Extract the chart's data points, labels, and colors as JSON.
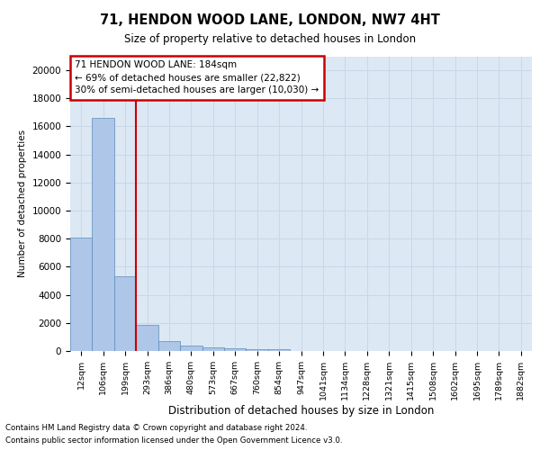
{
  "title1": "71, HENDON WOOD LANE, LONDON, NW7 4HT",
  "title2": "Size of property relative to detached houses in London",
  "xlabel": "Distribution of detached houses by size in London",
  "ylabel": "Number of detached properties",
  "categories": [
    "12sqm",
    "106sqm",
    "199sqm",
    "293sqm",
    "386sqm",
    "480sqm",
    "573sqm",
    "667sqm",
    "760sqm",
    "854sqm",
    "947sqm",
    "1041sqm",
    "1134sqm",
    "1228sqm",
    "1321sqm",
    "1415sqm",
    "1508sqm",
    "1602sqm",
    "1695sqm",
    "1789sqm",
    "1882sqm"
  ],
  "values": [
    8100,
    16600,
    5300,
    1850,
    700,
    380,
    270,
    200,
    160,
    130,
    0,
    0,
    0,
    0,
    0,
    0,
    0,
    0,
    0,
    0,
    0
  ],
  "bar_color": "#aec6e8",
  "bar_edge_color": "#5b8db8",
  "vline_color": "#cc0000",
  "annotation_box_text": "71 HENDON WOOD LANE: 184sqm\n← 69% of detached houses are smaller (22,822)\n30% of semi-detached houses are larger (10,030) →",
  "box_color": "#cc0000",
  "ylim": [
    0,
    21000
  ],
  "yticks": [
    0,
    2000,
    4000,
    6000,
    8000,
    10000,
    12000,
    14000,
    16000,
    18000,
    20000
  ],
  "grid_color": "#c8d8e8",
  "bg_color": "#dce8f4",
  "footer1": "Contains HM Land Registry data © Crown copyright and database right 2024.",
  "footer2": "Contains public sector information licensed under the Open Government Licence v3.0."
}
